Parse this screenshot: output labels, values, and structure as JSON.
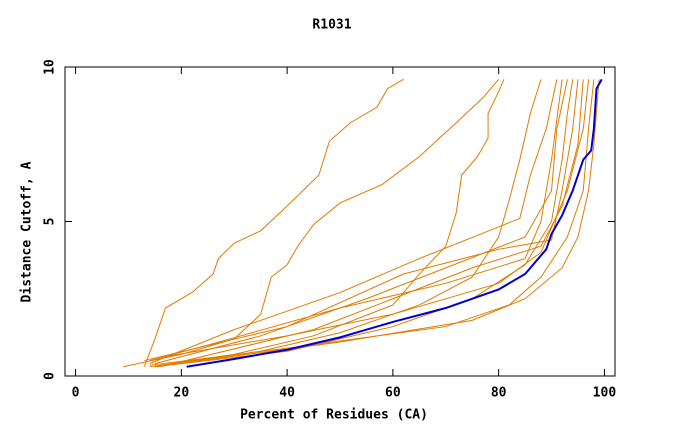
{
  "chart_data": {
    "type": "line",
    "title": "R1031",
    "x_label": "Percent of Residues (CA)",
    "y_label": "Distance Cutoff, A",
    "xlim": [
      -2,
      102
    ],
    "ylim": [
      0,
      10
    ],
    "xticks": [
      0,
      20,
      40,
      60,
      80,
      100
    ],
    "yticks": [
      0,
      5,
      10
    ],
    "series": [
      {
        "color": "#e07b00",
        "x": [
          13,
          15,
          17,
          22,
          26,
          27,
          30,
          35,
          40,
          46,
          48,
          52,
          57,
          59,
          62
        ],
        "values": [
          0.3,
          1.2,
          2.2,
          2.7,
          3.3,
          3.8,
          4.3,
          4.7,
          5.5,
          6.5,
          7.6,
          8.2,
          8.7,
          9.3,
          9.6
        ]
      },
      {
        "color": "#e07b00",
        "x": [
          9,
          20,
          30,
          35,
          37,
          40,
          42,
          45,
          50,
          58,
          65,
          72,
          77,
          80
        ],
        "values": [
          0.3,
          0.7,
          1.2,
          2,
          3.2,
          3.6,
          4.2,
          4.9,
          5.6,
          6.2,
          7.1,
          8.2,
          9,
          9.6
        ]
      },
      {
        "color": "#e07b00",
        "x": [
          14,
          30,
          45,
          60,
          65,
          70,
          72,
          73,
          76,
          78,
          78,
          80,
          81
        ],
        "values": [
          0.3,
          0.7,
          1.3,
          2.3,
          3.3,
          4.2,
          5.3,
          6.5,
          7.1,
          7.7,
          8.5,
          9.2,
          9.6
        ]
      },
      {
        "color": "#e07b00",
        "x": [
          15,
          35,
          50,
          65,
          75,
          80,
          82,
          84,
          86,
          88
        ],
        "values": [
          0.3,
          0.8,
          1.4,
          2.3,
          3.2,
          4.5,
          5.7,
          7,
          8.5,
          9.6
        ]
      },
      {
        "color": "#e07b00",
        "x": [
          14,
          30,
          50,
          65,
          84,
          86,
          89,
          91
        ],
        "values": [
          0.4,
          1.5,
          2.7,
          3.8,
          5.1,
          6.5,
          8,
          9.6
        ]
      },
      {
        "color": "#e07b00",
        "x": [
          15,
          40,
          60,
          75,
          85,
          90,
          92,
          93,
          94
        ],
        "values": [
          0.3,
          0.8,
          1.6,
          2.5,
          3.6,
          5,
          7,
          8.5,
          9.6
        ]
      },
      {
        "color": "#e07b00",
        "x": [
          14,
          40,
          70,
          82,
          88,
          93,
          96,
          97,
          98
        ],
        "values": [
          0.35,
          0.9,
          1.6,
          2.3,
          3.2,
          4.5,
          6,
          8,
          9.6
        ]
      },
      {
        "color": "#e07b00",
        "x": [
          15,
          35,
          55,
          70,
          85,
          90,
          91,
          93
        ],
        "values": [
          0.4,
          1.3,
          2.5,
          3.5,
          4.5,
          6,
          8,
          9.6
        ]
      },
      {
        "color": "#e07b00",
        "x": [
          16,
          45,
          60,
          75,
          88,
          92,
          95,
          96
        ],
        "values": [
          0.3,
          1.5,
          2.5,
          3.5,
          4.2,
          5.5,
          7.5,
          9.6
        ]
      },
      {
        "color": "#e07b00",
        "x": [
          13,
          40,
          62,
          80,
          90,
          92,
          94,
          95
        ],
        "values": [
          0.5,
          1.6,
          3.3,
          4.1,
          4.4,
          6,
          8,
          9.6
        ]
      },
      {
        "color": "#e07b00",
        "x": [
          15,
          50,
          75,
          85,
          92,
          95,
          97,
          98,
          99
        ],
        "values": [
          0.3,
          1.1,
          1.8,
          2.5,
          3.5,
          4.5,
          6,
          7.5,
          9.6
        ]
      },
      {
        "color": "#e07b00",
        "x": [
          14,
          25,
          50,
          70,
          85,
          88,
          90,
          92
        ],
        "values": [
          0.5,
          1,
          2.2,
          3,
          3.8,
          5,
          7,
          9.6
        ]
      },
      {
        "color": "#e07b00",
        "x": [
          16,
          40,
          60,
          80,
          88,
          93,
          96,
          97
        ],
        "values": [
          0.6,
          1.3,
          2,
          3,
          4,
          6,
          8,
          9.6
        ]
      },
      {
        "color": "#0000cc",
        "x": [
          21,
          30,
          40,
          50,
          60,
          70,
          80,
          85,
          89,
          90,
          92,
          94,
          96,
          97.5,
          98,
          98.5,
          99.5
        ],
        "values": [
          0.3,
          0.55,
          0.85,
          1.25,
          1.75,
          2.2,
          2.8,
          3.3,
          4.1,
          4.6,
          5.2,
          6,
          7,
          7.3,
          8,
          9.3,
          9.6
        ]
      }
    ]
  }
}
